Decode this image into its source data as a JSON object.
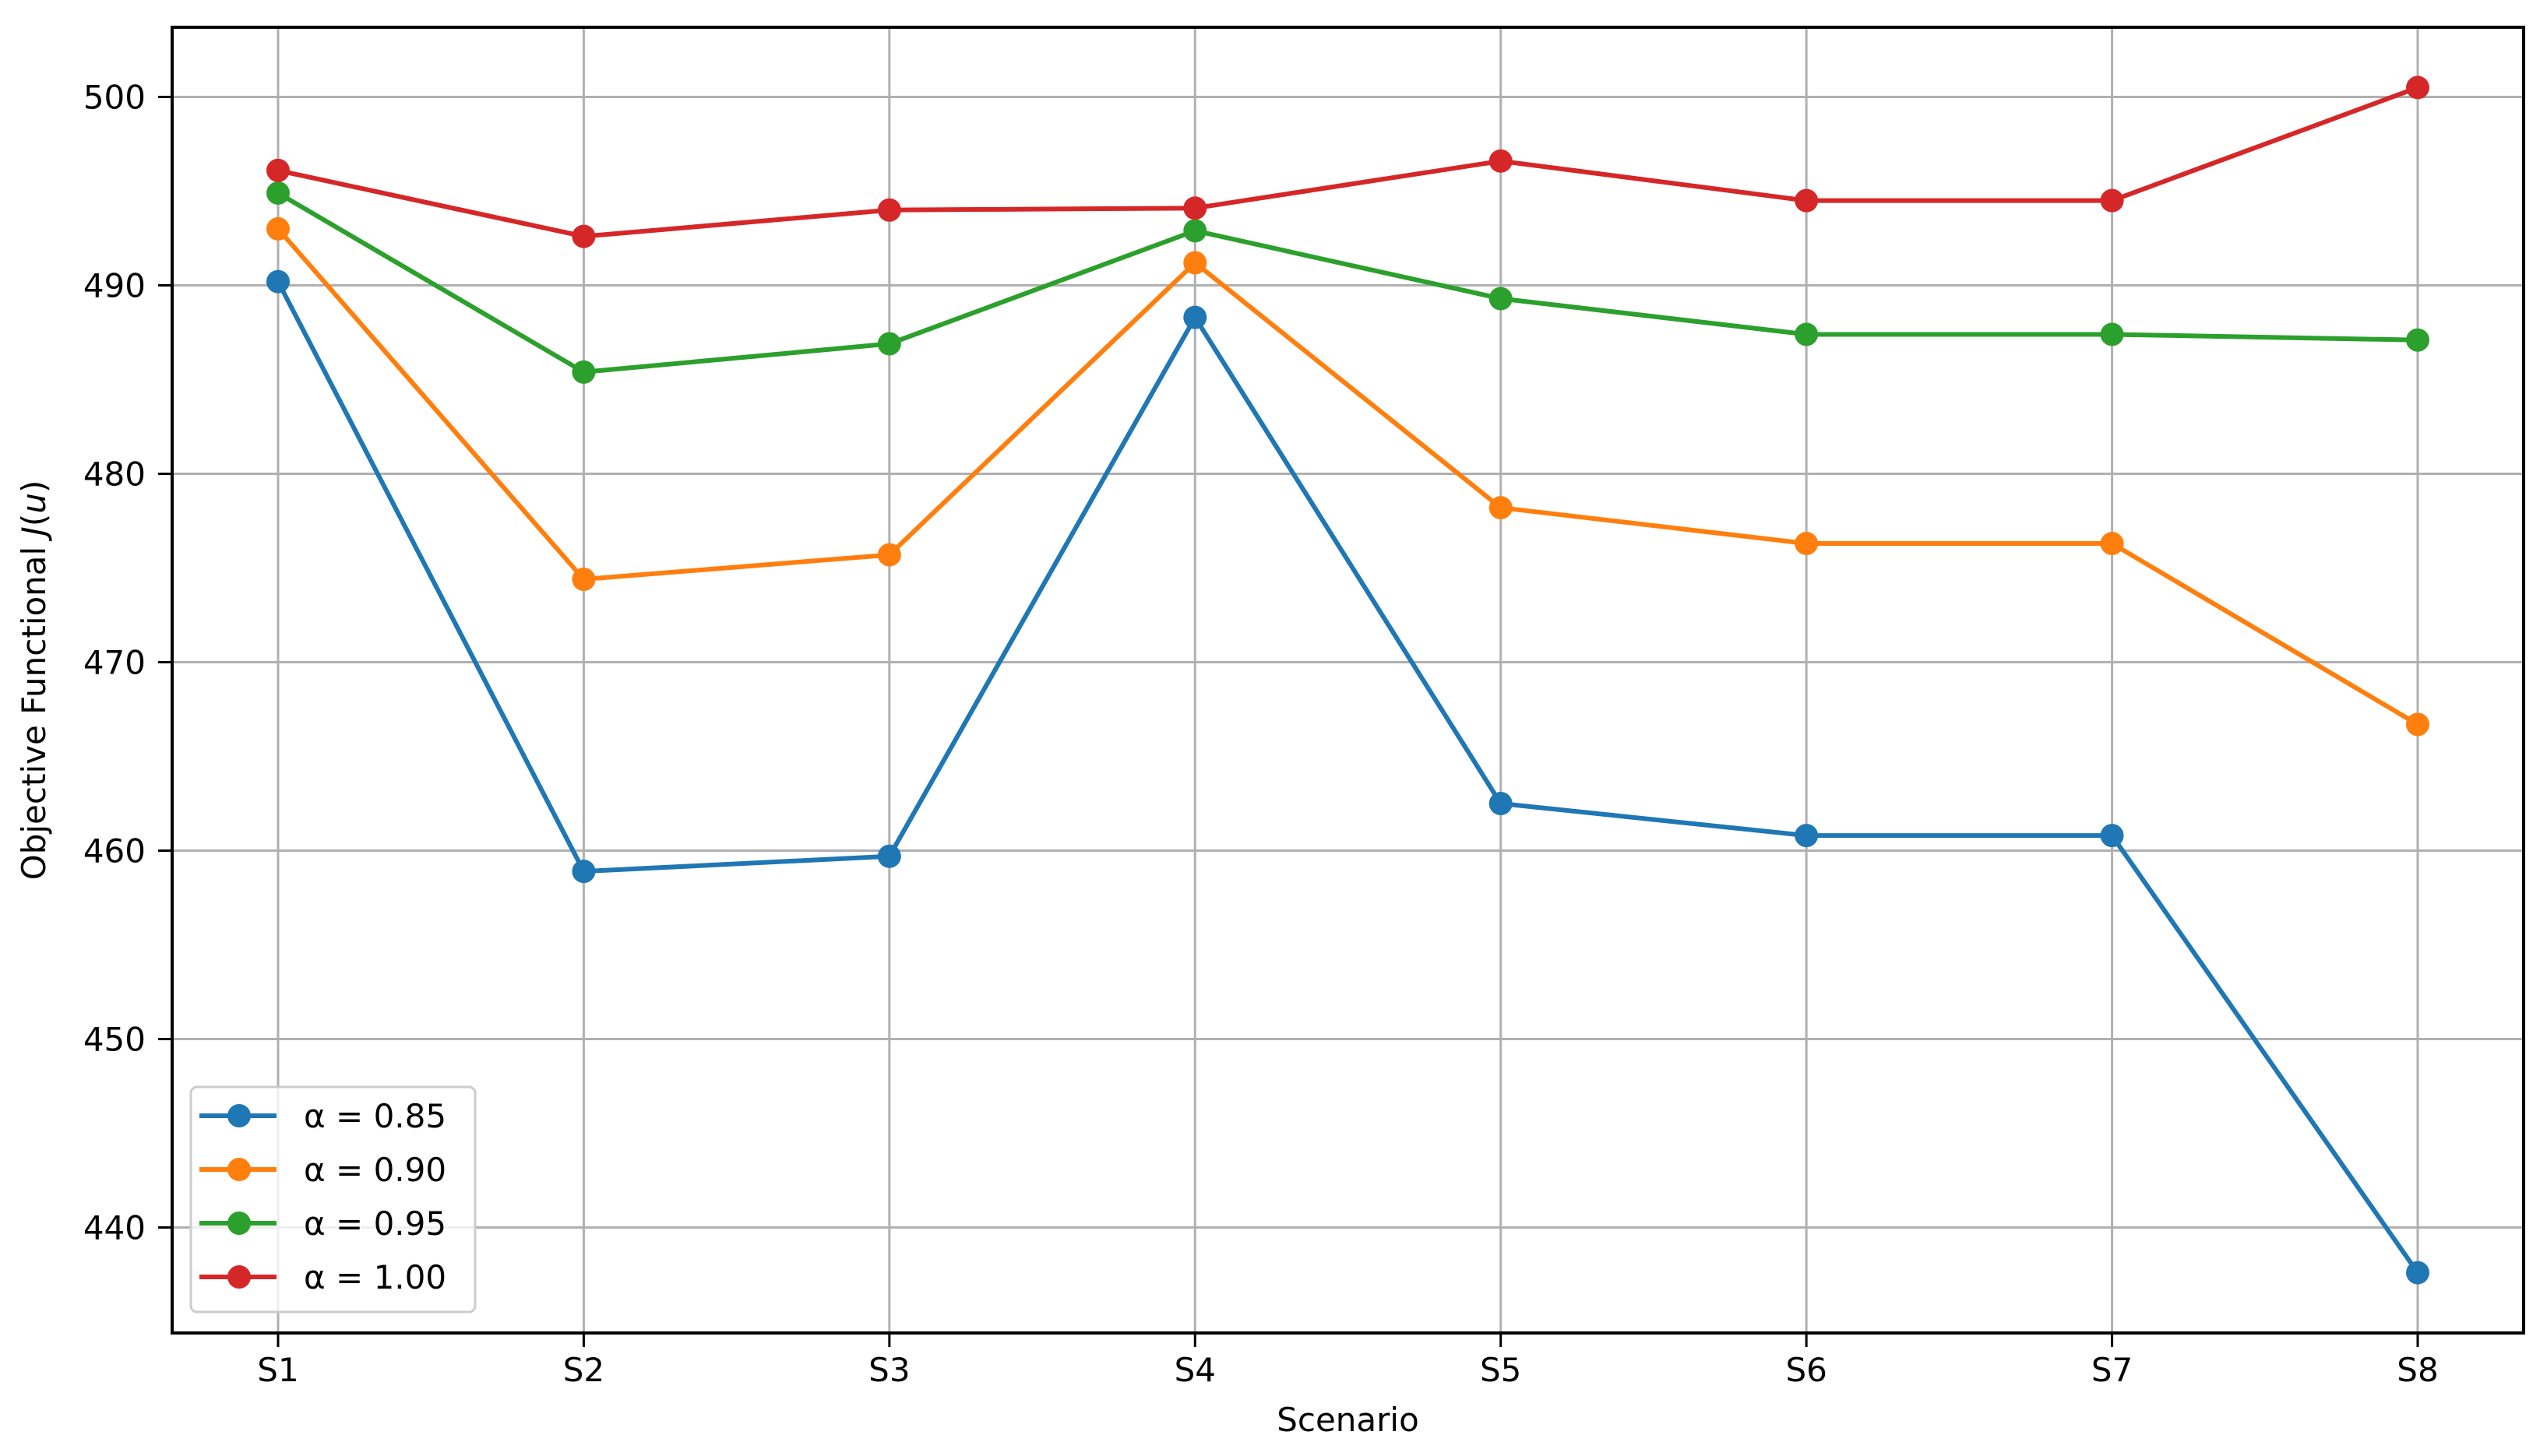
{
  "chart_data": {
    "type": "line",
    "title": "",
    "xlabel": "Scenario",
    "ylabel": "Objective Functional J(u)",
    "ylabel_parts": {
      "prefix": "Objective Functional ",
      "math": "J",
      "open": "(",
      "arg": "u",
      "close": ")"
    },
    "categories": [
      "S1",
      "S2",
      "S3",
      "S4",
      "S5",
      "S6",
      "S7",
      "S8"
    ],
    "yticks": [
      440,
      450,
      460,
      470,
      480,
      490,
      500
    ],
    "ylim": [
      434.4,
      503.7
    ],
    "grid": true,
    "legend_position": "lower left",
    "marker": "circle",
    "series": [
      {
        "name": "α = 0.85",
        "color": "#1f77b4",
        "values": [
          490.2,
          458.9,
          459.7,
          488.3,
          462.5,
          460.8,
          460.8,
          437.6
        ]
      },
      {
        "name": "α = 0.90",
        "color": "#ff7f0e",
        "values": [
          493.0,
          474.4,
          475.7,
          491.2,
          478.2,
          476.3,
          476.3,
          466.7
        ]
      },
      {
        "name": "α = 0.95",
        "color": "#2ca02c",
        "values": [
          494.9,
          485.4,
          486.9,
          492.9,
          489.3,
          487.4,
          487.4,
          487.1
        ]
      },
      {
        "name": "α = 1.00",
        "color": "#d62728",
        "values": [
          496.1,
          492.6,
          494.0,
          494.1,
          496.6,
          494.5,
          494.5,
          500.5
        ]
      }
    ]
  },
  "colors": {
    "grid": "#b0b0b0",
    "axis": "#000000",
    "legend_border": "#cccccc"
  }
}
